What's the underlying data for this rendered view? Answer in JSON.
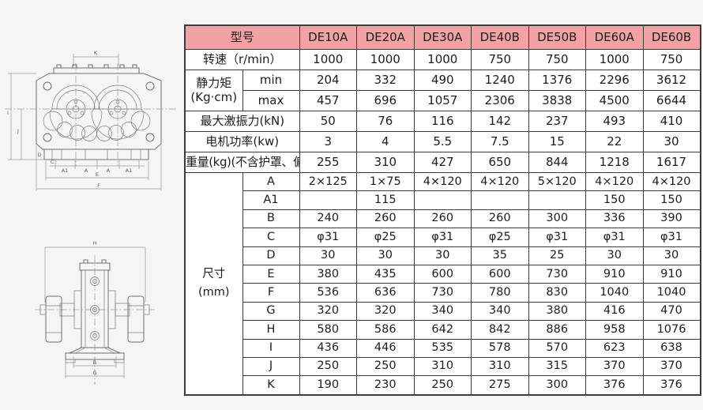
{
  "colors": {
    "header_pink": "#f2a2a2",
    "label_blue": "#cfe7f8",
    "dim_cream": "#faf3d8",
    "grid_border": "#3b3b3b"
  },
  "table": {
    "header": {
      "model_label": "型号",
      "models": [
        "DE10A",
        "DE20A",
        "DE30A",
        "DE40B",
        "DE50B",
        "DE60A",
        "DE60B"
      ]
    },
    "speed": {
      "label": "转速（r/min）",
      "values": [
        "1000",
        "1000",
        "1000",
        "750",
        "750",
        "1000",
        "750"
      ]
    },
    "static_moment": {
      "label_line1": "静力矩",
      "label_line2": "(Kg·cm)",
      "min_label": "min",
      "max_label": "max",
      "min_values": [
        "204",
        "332",
        "490",
        "1240",
        "1376",
        "2296",
        "3612"
      ],
      "max_values": [
        "457",
        "696",
        "1057",
        "2306",
        "3838",
        "4500",
        "6644"
      ]
    },
    "max_force": {
      "label": "最大激振力(kN)",
      "values": [
        "50",
        "76",
        "116",
        "142",
        "237",
        "493",
        "410"
      ]
    },
    "motor_power": {
      "label": "电机功率(kw)",
      "values": [
        "3",
        "4",
        "5.5",
        "7.5",
        "15",
        "22",
        "30"
      ]
    },
    "weight": {
      "label": "重量(kg)(不含护罩、偏心块)",
      "values": [
        "255",
        "310",
        "427",
        "650",
        "844",
        "1218",
        "1617"
      ]
    },
    "dimensions": {
      "label_line1": "尺寸",
      "label_line2": "(mm)",
      "rows": [
        {
          "letter": "A",
          "values": [
            "2×125",
            "1×75",
            "4×120",
            "4×120",
            "5×120",
            "4×120",
            "4×120"
          ]
        },
        {
          "letter": "A1",
          "values": [
            "",
            "115",
            "",
            "",
            "",
            "150",
            "150"
          ]
        },
        {
          "letter": "B",
          "values": [
            "240",
            "260",
            "260",
            "260",
            "300",
            "336",
            "390"
          ]
        },
        {
          "letter": "C",
          "values": [
            "φ31",
            "φ25",
            "φ31",
            "φ25",
            "φ31",
            "φ31",
            "φ31"
          ]
        },
        {
          "letter": "D",
          "values": [
            "30",
            "30",
            "30",
            "35",
            "25",
            "30",
            "30"
          ]
        },
        {
          "letter": "E",
          "values": [
            "380",
            "435",
            "600",
            "600",
            "730",
            "910",
            "910"
          ]
        },
        {
          "letter": "F",
          "values": [
            "536",
            "636",
            "730",
            "780",
            "830",
            "1040",
            "1040"
          ]
        },
        {
          "letter": "G",
          "values": [
            "320",
            "320",
            "340",
            "340",
            "380",
            "416",
            "470"
          ]
        },
        {
          "letter": "H",
          "values": [
            "580",
            "586",
            "642",
            "842",
            "886",
            "958",
            "1076"
          ]
        },
        {
          "letter": "I",
          "values": [
            "436",
            "446",
            "535",
            "578",
            "570",
            "623",
            "638"
          ]
        },
        {
          "letter": "J",
          "values": [
            "250",
            "250",
            "310",
            "310",
            "315",
            "370",
            "370"
          ]
        },
        {
          "letter": "K",
          "values": [
            "190",
            "230",
            "250",
            "275",
            "300",
            "376",
            "376"
          ]
        }
      ]
    }
  },
  "drawings": {
    "top_view": {
      "dims": {
        "k": "K",
        "i": "I",
        "j": "J",
        "d": "D",
        "c": "C",
        "a1_left": "A1",
        "a_left": "A",
        "a_right": "A",
        "a1_right": "A1",
        "e": "E",
        "f": "F"
      }
    },
    "front_view": {
      "dims": {
        "h": "H",
        "b": "B",
        "g": "G"
      }
    }
  }
}
